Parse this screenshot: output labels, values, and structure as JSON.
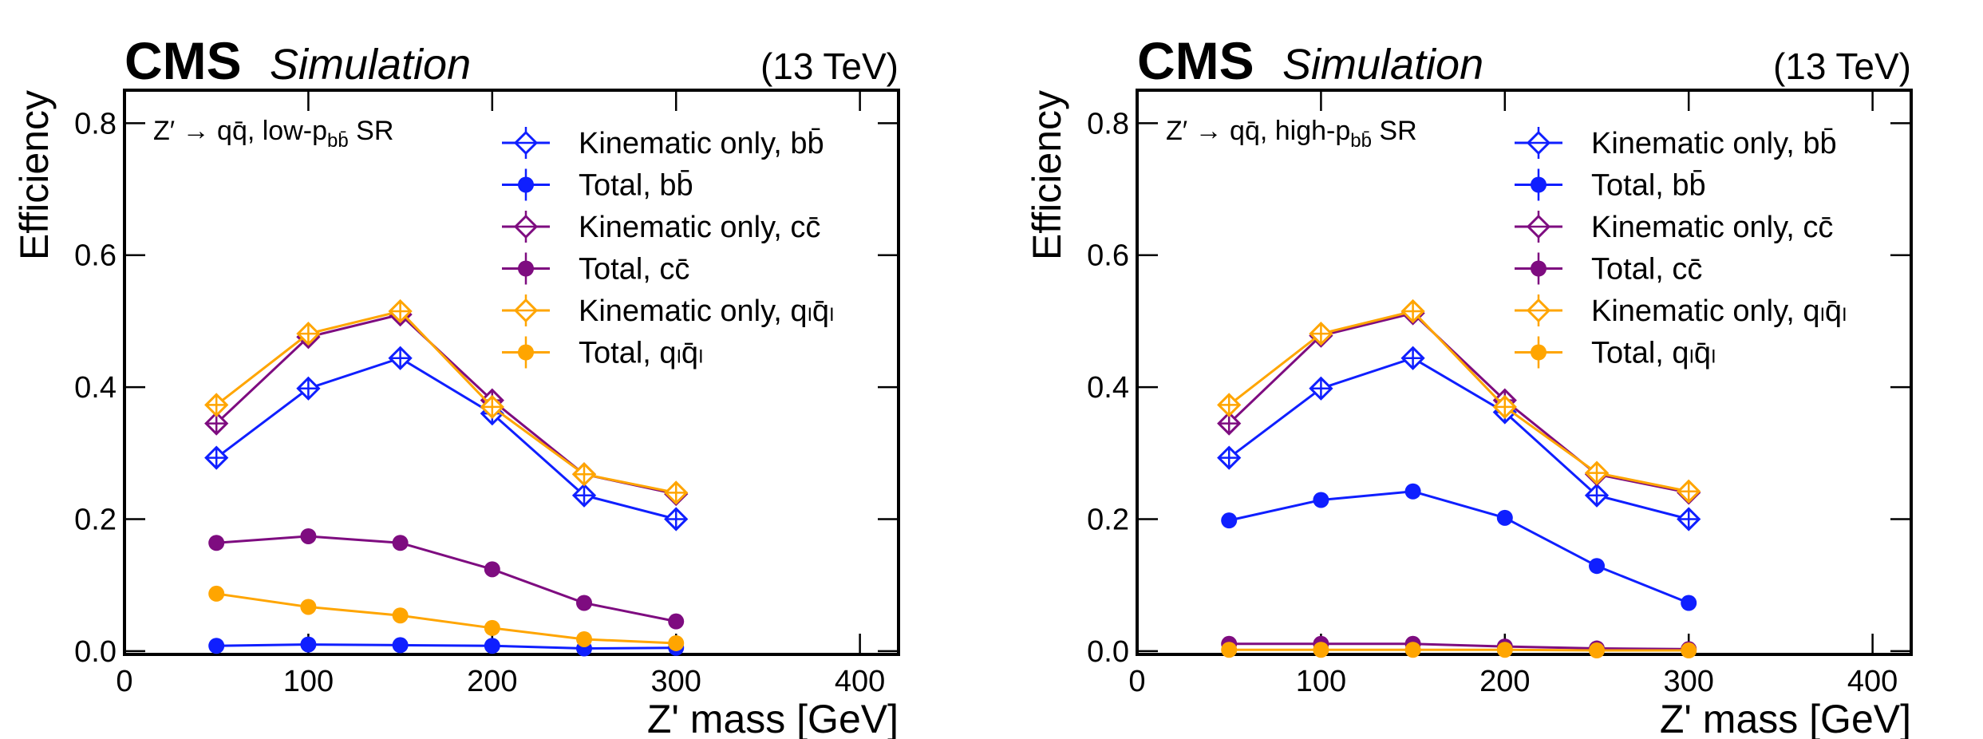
{
  "chart_data": [
    {
      "type": "line",
      "experiment": "CMS",
      "label": "Simulation",
      "energy": "(13 TeV)",
      "annotation": [
        {
          "text": "Z′ → qq̄, low-p"
        },
        {
          "text": "bb̄",
          "sub": true
        },
        {
          "text": " SR"
        }
      ],
      "x_label": "Z' mass [GeV]",
      "y_label": "Efficiency",
      "x": [
        50,
        100,
        150,
        200,
        250,
        300
      ],
      "xlim": [
        0,
        421
      ],
      "ylim": [
        -0.005,
        0.85
      ],
      "xticks": [
        0,
        100,
        200,
        300,
        400
      ],
      "yticks": [
        {
          "value": 0,
          "label": "0.0"
        },
        0.2,
        0.4,
        0.6,
        0.8
      ],
      "legend": "upper right",
      "series": [
        {
          "name": "Kinematic only, bb̄",
          "color": "#0f1fff",
          "marker": "diamond-open",
          "values": [
            0.293,
            0.398,
            0.444,
            0.36,
            0.236,
            0.2
          ]
        },
        {
          "name": "Total, bb̄",
          "color": "#0f1fff",
          "marker": "circle",
          "values": [
            0.008,
            0.01,
            0.009,
            0.008,
            0.004,
            0.005
          ]
        },
        {
          "name": "Kinematic only, cc̄",
          "color": "#7e0c80",
          "marker": "diamond-open",
          "values": [
            0.345,
            0.476,
            0.51,
            0.38,
            0.268,
            0.238
          ]
        },
        {
          "name": "Total, cc̄",
          "color": "#7e0c80",
          "marker": "circle",
          "values": [
            0.164,
            0.174,
            0.164,
            0.124,
            0.073,
            0.045
          ]
        },
        {
          "name": "Kinematic only, qₗq̄ₗ",
          "color": "#ffa500",
          "marker": "diamond-open",
          "values": [
            0.373,
            0.481,
            0.515,
            0.37,
            0.268,
            0.24
          ]
        },
        {
          "name": "Total, qₗq̄ₗ",
          "color": "#ffa500",
          "marker": "circle",
          "values": [
            0.087,
            0.067,
            0.054,
            0.035,
            0.018,
            0.012
          ]
        }
      ]
    },
    {
      "type": "line",
      "experiment": "CMS",
      "label": "Simulation",
      "energy": "(13 TeV)",
      "annotation": [
        {
          "text": "Z′ → qq̄, high-p"
        },
        {
          "text": "bb̄",
          "sub": true
        },
        {
          "text": " SR"
        }
      ],
      "x_label": "Z' mass [GeV]",
      "y_label": "Efficiency",
      "x": [
        50,
        100,
        150,
        200,
        250,
        300
      ],
      "xlim": [
        0,
        421
      ],
      "ylim": [
        -0.005,
        0.85
      ],
      "xticks": [
        0,
        100,
        200,
        300,
        400
      ],
      "yticks": [
        {
          "value": 0,
          "label": "0.0"
        },
        0.2,
        0.4,
        0.6,
        0.8
      ],
      "legend": "upper right",
      "series": [
        {
          "name": "Kinematic only, bb̄",
          "color": "#0f1fff",
          "marker": "diamond-open",
          "values": [
            0.293,
            0.398,
            0.444,
            0.362,
            0.236,
            0.2
          ]
        },
        {
          "name": "Total, bb̄",
          "color": "#0f1fff",
          "marker": "circle",
          "values": [
            0.198,
            0.229,
            0.242,
            0.202,
            0.129,
            0.073
          ]
        },
        {
          "name": "Kinematic only, cc̄",
          "color": "#7e0c80",
          "marker": "diamond-open",
          "values": [
            0.345,
            0.478,
            0.512,
            0.38,
            0.268,
            0.24
          ]
        },
        {
          "name": "Total, cc̄",
          "color": "#7e0c80",
          "marker": "circle",
          "values": [
            0.011,
            0.011,
            0.011,
            0.007,
            0.004,
            0.003
          ]
        },
        {
          "name": "Kinematic only, qₗq̄ₗ",
          "color": "#ffa500",
          "marker": "diamond-open",
          "values": [
            0.373,
            0.481,
            0.515,
            0.37,
            0.27,
            0.242
          ]
        },
        {
          "name": "Total, qₗq̄ₗ",
          "color": "#ffa500",
          "marker": "circle",
          "values": [
            0.002,
            0.002,
            0.002,
            0.002,
            0.001,
            0.001
          ]
        }
      ]
    }
  ]
}
